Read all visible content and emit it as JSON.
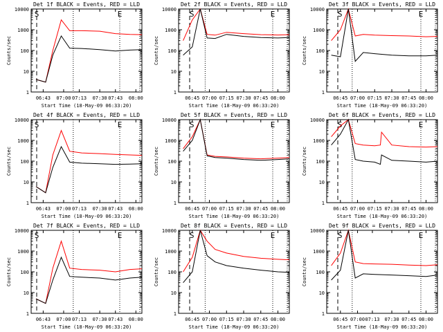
{
  "figure": {
    "colors": {
      "events": "#000000",
      "lld": "#ff0000",
      "background": "#ffffff"
    },
    "common": {
      "ylabel": "Counts/sec",
      "xlabel": "Start Time (18-May-09 06:33:20)",
      "y_ticks": [
        "1",
        "10",
        "100",
        "1000",
        "10000"
      ],
      "marker_S": "S",
      "marker_E": "E"
    }
  },
  "chart_data": [
    {
      "type": "line",
      "title": "Det 1f BLACK = Events, RED = LLD",
      "yscale": "log",
      "ylim": [
        1,
        10000
      ],
      "xlim": [
        "06:33",
        "08:05"
      ],
      "x_ticks": [
        "06:43",
        "07:00",
        "07:13",
        "07:30",
        "07:43",
        "08:00"
      ],
      "grid": false,
      "series": [
        {
          "name": "Events",
          "color": "#000000",
          "x": [
            "06:37",
            "06:45",
            "06:51",
            "06:58",
            "07:05",
            "07:15",
            "07:30",
            "07:43",
            "07:55",
            "08:05"
          ],
          "values": [
            4,
            3,
            60,
            500,
            130,
            125,
            110,
            95,
            105,
            110
          ]
        },
        {
          "name": "LLD",
          "color": "#ff0000",
          "x": [
            "06:37",
            "06:45",
            "06:51",
            "06:58",
            "07:05",
            "07:15",
            "07:30",
            "07:43",
            "07:55",
            "08:05"
          ],
          "values": [
            4,
            3,
            100,
            3000,
            900,
            900,
            850,
            650,
            600,
            580
          ]
        }
      ]
    },
    {
      "type": "line",
      "title": "Det 2f BLACK = Events, RED = LLD",
      "yscale": "log",
      "ylim": [
        1,
        10000
      ],
      "xlim": [
        "06:33",
        "08:10"
      ],
      "x_ticks": [
        "06:45",
        "07:00",
        "07:15",
        "07:30",
        "07:45",
        "08:00"
      ],
      "grid": false,
      "series": [
        {
          "name": "Events",
          "color": "#000000",
          "x": [
            "06:37",
            "06:45",
            "06:52",
            "06:58",
            "07:05",
            "07:15",
            "07:30",
            "07:45",
            "08:00",
            "08:10"
          ],
          "values": [
            60,
            150,
            10000,
            400,
            380,
            600,
            480,
            420,
            400,
            420
          ]
        },
        {
          "name": "LLD",
          "color": "#ff0000",
          "x": [
            "06:37",
            "06:45",
            "06:52",
            "06:58",
            "07:05",
            "07:15",
            "07:30",
            "07:45",
            "08:00",
            "08:10"
          ],
          "values": [
            300,
            3000,
            10000,
            600,
            550,
            750,
            650,
            580,
            560,
            580
          ]
        }
      ]
    },
    {
      "type": "line",
      "title": "Det 3f BLACK = Events, RED = LLD",
      "yscale": "log",
      "ylim": [
        1,
        10000
      ],
      "xlim": [
        "06:33",
        "08:10"
      ],
      "x_ticks": [
        "06:45",
        "07:00",
        "07:15",
        "07:30",
        "07:45",
        "08:00"
      ],
      "grid": false,
      "series": [
        {
          "name": "Events",
          "color": "#000000",
          "x": [
            "06:37",
            "06:45",
            "06:52",
            "06:58",
            "07:05",
            "07:15",
            "07:30",
            "07:45",
            "08:00",
            "08:10"
          ],
          "values": [
            60,
            50,
            10000,
            30,
            80,
            70,
            60,
            55,
            55,
            60
          ]
        },
        {
          "name": "LLD",
          "color": "#ff0000",
          "x": [
            "06:37",
            "06:45",
            "06:52",
            "06:58",
            "07:05",
            "07:15",
            "07:30",
            "07:45",
            "08:00",
            "08:10"
          ],
          "values": [
            300,
            1000,
            10000,
            500,
            600,
            550,
            520,
            500,
            460,
            480
          ]
        }
      ]
    },
    {
      "type": "line",
      "title": "Det 4f BLACK = Events, RED = LLD",
      "yscale": "log",
      "ylim": [
        1,
        10000
      ],
      "xlim": [
        "06:33",
        "08:05"
      ],
      "x_ticks": [
        "06:43",
        "07:00",
        "07:13",
        "07:30",
        "07:43",
        "08:00"
      ],
      "grid": false,
      "series": [
        {
          "name": "Events",
          "color": "#000000",
          "x": [
            "06:37",
            "06:45",
            "06:51",
            "06:58",
            "07:05",
            "07:15",
            "07:30",
            "07:43",
            "07:55",
            "08:05"
          ],
          "values": [
            6,
            3,
            50,
            500,
            90,
            80,
            75,
            70,
            72,
            75
          ]
        },
        {
          "name": "LLD",
          "color": "#ff0000",
          "x": [
            "06:37",
            "06:45",
            "06:51",
            "06:58",
            "07:05",
            "07:15",
            "07:30",
            "07:43",
            "07:55",
            "08:05"
          ],
          "values": [
            6,
            3,
            200,
            3000,
            300,
            250,
            230,
            210,
            200,
            190
          ]
        }
      ]
    },
    {
      "type": "line",
      "title": "Det 5f BLACK = Events, RED = LLD",
      "yscale": "log",
      "ylim": [
        1,
        10000
      ],
      "xlim": [
        "06:33",
        "08:10"
      ],
      "x_ticks": [
        "06:45",
        "07:00",
        "07:15",
        "07:30",
        "07:45",
        "08:00"
      ],
      "grid": false,
      "series": [
        {
          "name": "Events",
          "color": "#000000",
          "x": [
            "06:37",
            "06:45",
            "06:52",
            "06:58",
            "07:05",
            "07:15",
            "07:30",
            "07:45",
            "08:00",
            "08:10"
          ],
          "values": [
            300,
            1000,
            10000,
            180,
            150,
            140,
            120,
            110,
            120,
            130
          ]
        },
        {
          "name": "LLD",
          "color": "#ff0000",
          "x": [
            "06:37",
            "06:45",
            "06:52",
            "06:58",
            "07:05",
            "07:15",
            "07:30",
            "07:45",
            "08:00",
            "08:10"
          ],
          "values": [
            400,
            1500,
            10000,
            200,
            170,
            160,
            140,
            130,
            140,
            150
          ]
        }
      ]
    },
    {
      "type": "line",
      "title": "Det 6f BLACK = Events, RED = LLD",
      "yscale": "log",
      "ylim": [
        1,
        10000
      ],
      "xlim": [
        "06:33",
        "08:10"
      ],
      "x_ticks": [
        "06:45",
        "07:00",
        "07:15",
        "07:30",
        "07:45",
        "08:00"
      ],
      "grid": false,
      "series": [
        {
          "name": "Events",
          "color": "#000000",
          "x": [
            "06:37",
            "06:45",
            "06:52",
            "06:58",
            "07:05",
            "07:15",
            "07:20",
            "07:21",
            "07:30",
            "07:45",
            "08:00",
            "08:10"
          ],
          "values": [
            600,
            2000,
            10000,
            120,
            100,
            90,
            70,
            200,
            110,
            100,
            90,
            100
          ]
        },
        {
          "name": "LLD",
          "color": "#ff0000",
          "x": [
            "06:37",
            "06:45",
            "06:52",
            "06:58",
            "07:05",
            "07:15",
            "07:20",
            "07:21",
            "07:30",
            "07:45",
            "08:00",
            "08:10"
          ],
          "values": [
            1500,
            5000,
            10000,
            700,
            600,
            550,
            600,
            2500,
            600,
            500,
            480,
            500
          ]
        }
      ]
    },
    {
      "type": "line",
      "title": "Det 7f BLACK = Events, RED = LLD",
      "yscale": "log",
      "ylim": [
        1,
        10000
      ],
      "xlim": [
        "06:33",
        "08:05"
      ],
      "x_ticks": [
        "06:43",
        "07:00",
        "07:13",
        "07:30",
        "07:43",
        "08:00"
      ],
      "grid": false,
      "series": [
        {
          "name": "Events",
          "color": "#000000",
          "x": [
            "06:37",
            "06:45",
            "06:51",
            "06:58",
            "07:05",
            "07:15",
            "07:30",
            "07:43",
            "07:55",
            "08:05"
          ],
          "values": [
            5,
            3,
            40,
            500,
            60,
            55,
            50,
            40,
            50,
            55
          ]
        },
        {
          "name": "LLD",
          "color": "#ff0000",
          "x": [
            "06:37",
            "06:45",
            "06:51",
            "06:58",
            "07:05",
            "07:15",
            "07:30",
            "07:43",
            "07:55",
            "08:05"
          ],
          "values": [
            5,
            3,
            150,
            3000,
            150,
            130,
            120,
            100,
            130,
            140
          ]
        }
      ]
    },
    {
      "type": "line",
      "title": "Det 8f BLACK = Events, RED = LLD",
      "yscale": "log",
      "ylim": [
        1,
        10000
      ],
      "xlim": [
        "06:33",
        "08:10"
      ],
      "x_ticks": [
        "06:45",
        "07:00",
        "07:15",
        "07:30",
        "07:45",
        "08:00"
      ],
      "grid": false,
      "series": [
        {
          "name": "Events",
          "color": "#000000",
          "x": [
            "06:37",
            "06:45",
            "06:52",
            "06:58",
            "07:05",
            "07:15",
            "07:30",
            "07:45",
            "08:00",
            "08:10"
          ],
          "values": [
            30,
            100,
            10000,
            600,
            300,
            200,
            150,
            120,
            100,
            95
          ]
        },
        {
          "name": "LLD",
          "color": "#ff0000",
          "x": [
            "06:37",
            "06:45",
            "06:52",
            "06:58",
            "07:05",
            "07:15",
            "07:30",
            "07:45",
            "08:00",
            "08:10"
          ],
          "values": [
            100,
            500,
            10000,
            3000,
            1200,
            800,
            550,
            450,
            400,
            380
          ]
        }
      ]
    },
    {
      "type": "line",
      "title": "Det 9f BLACK = Events, RED = LLD",
      "yscale": "log",
      "ylim": [
        1,
        10000
      ],
      "xlim": [
        "06:33",
        "08:10"
      ],
      "x_ticks": [
        "06:45",
        "07:00",
        "07:13",
        "07:30",
        "07:45",
        "08:00"
      ],
      "grid": false,
      "series": [
        {
          "name": "Events",
          "color": "#000000",
          "x": [
            "06:37",
            "06:45",
            "06:52",
            "06:58",
            "07:05",
            "07:15",
            "07:30",
            "07:45",
            "08:00",
            "08:10"
          ],
          "values": [
            40,
            120,
            10000,
            50,
            80,
            75,
            70,
            65,
            60,
            70
          ]
        },
        {
          "name": "LLD",
          "color": "#ff0000",
          "x": [
            "06:37",
            "06:45",
            "06:52",
            "06:58",
            "07:05",
            "07:15",
            "07:30",
            "07:45",
            "08:00",
            "08:10"
          ],
          "values": [
            200,
            800,
            10000,
            300,
            250,
            240,
            230,
            210,
            200,
            220
          ]
        }
      ]
    }
  ]
}
